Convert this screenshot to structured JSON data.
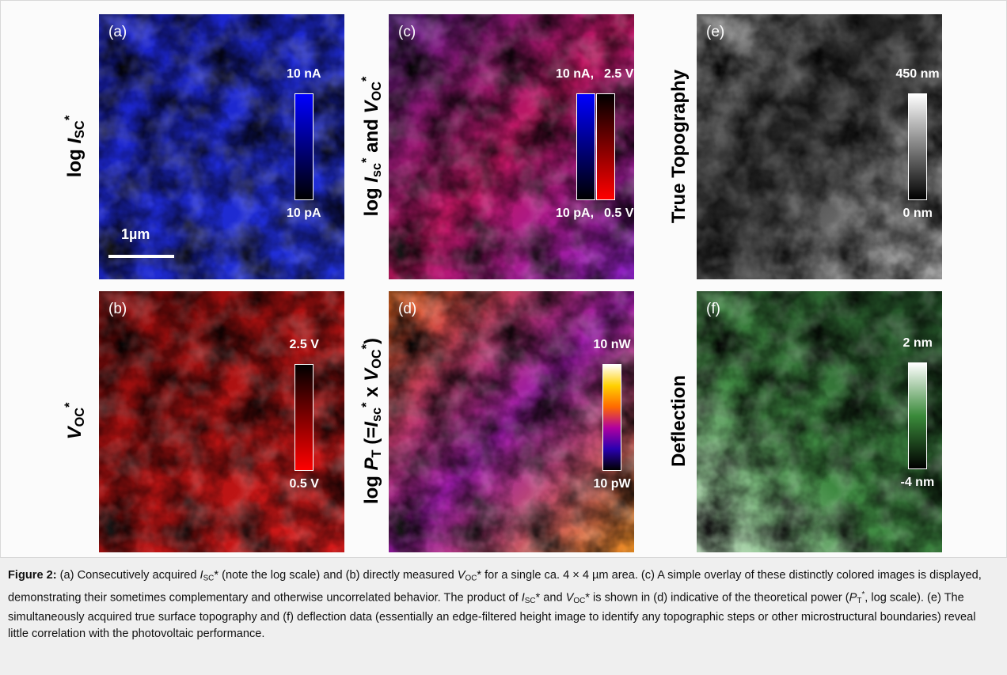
{
  "figure": {
    "panels": [
      {
        "letter": "(a)",
        "ylabel": [
          {
            "text": "log ",
            "style": ""
          },
          {
            "text": "I",
            "style": "i"
          },
          {
            "text": "SC",
            "style": "sub"
          },
          {
            "text": "*",
            "style": "sup"
          }
        ],
        "colorbars": [
          {
            "top": "10 nA",
            "bottom": "10 pA",
            "colors": [
              "#0000ff",
              "#000000"
            ]
          }
        ]
      },
      {
        "letter": "(b)",
        "ylabel": [
          {
            "text": "V",
            "style": "i"
          },
          {
            "text": "OC",
            "style": "sub"
          },
          {
            "text": "*",
            "style": "sup"
          }
        ],
        "colorbars": [
          {
            "top": "2.5 V",
            "bottom": "0.5 V",
            "colors": [
              "#000000",
              "#ff0000"
            ]
          }
        ]
      },
      {
        "letter": "(c)",
        "ylabel": [
          {
            "text": "log ",
            "style": ""
          },
          {
            "text": "I",
            "style": "i"
          },
          {
            "text": "sc",
            "style": "sub"
          },
          {
            "text": "*",
            "style": "sup"
          },
          {
            "text": " and ",
            "style": ""
          },
          {
            "text": "V",
            "style": "i"
          },
          {
            "text": "OC",
            "style": "sub"
          },
          {
            "text": "*",
            "style": "sup"
          }
        ],
        "colorbars": [
          {
            "top": "10 nA,",
            "bottom": "10 pA,",
            "colors": [
              "#0000ff",
              "#000000"
            ]
          },
          {
            "top": "2.5 V",
            "bottom": "0.5 V",
            "colors": [
              "#000000",
              "#ff0000"
            ]
          }
        ]
      },
      {
        "letter": "(d)",
        "ylabel": [
          {
            "text": "log ",
            "style": ""
          },
          {
            "text": "P",
            "style": "i"
          },
          {
            "text": "T",
            "style": "sub"
          },
          {
            "text": " (=",
            "style": ""
          },
          {
            "text": "I",
            "style": "i"
          },
          {
            "text": "sc",
            "style": "sub"
          },
          {
            "text": "*",
            "style": "sup"
          },
          {
            "text": " x ",
            "style": ""
          },
          {
            "text": "V",
            "style": "i"
          },
          {
            "text": "OC",
            "style": "sub"
          },
          {
            "text": "*",
            "style": "sup"
          },
          {
            "text": ")",
            "style": ""
          }
        ],
        "colorbars": [
          {
            "top": "10 nW",
            "bottom": "10 pW",
            "colors": [
              "#ffffff",
              "#ffd000",
              "#ff6a00",
              "#b000a0",
              "#2a00b0",
              "#000000"
            ]
          }
        ]
      },
      {
        "letter": "(e)",
        "ylabel": [
          {
            "text": "True Topography",
            "style": ""
          }
        ],
        "colorbars": [
          {
            "top": "450 nm",
            "bottom": "0 nm",
            "colors": [
              "#ffffff",
              "#000000"
            ]
          }
        ]
      },
      {
        "letter": "(f)",
        "ylabel": [
          {
            "text": "Deflection",
            "style": ""
          }
        ],
        "colorbars": [
          {
            "top": "2 nm",
            "bottom": "-4 nm",
            "colors": [
              "#ffffff",
              "#3a8a3a",
              "#000000"
            ]
          }
        ]
      }
    ],
    "scale_bar": "1µm",
    "caption": [
      {
        "text": "Figure 2:",
        "style": "b"
      },
      {
        "text": " (a) Consecutively acquired ",
        "style": ""
      },
      {
        "text": "I",
        "style": "i"
      },
      {
        "text": "SC",
        "style": "sub"
      },
      {
        "text": "* (note the log scale) and (b) directly measured ",
        "style": ""
      },
      {
        "text": "V",
        "style": "i"
      },
      {
        "text": "OC",
        "style": "sub"
      },
      {
        "text": "* for a single ca. 4 × 4 µm area. (c) A simple overlay of these distinctly colored images is displayed, demonstrating their sometimes complementary and otherwise uncorrelated behavior. The product of ",
        "style": ""
      },
      {
        "text": "I",
        "style": "i"
      },
      {
        "text": "SC",
        "style": "sub"
      },
      {
        "text": "* and ",
        "style": ""
      },
      {
        "text": "V",
        "style": "i"
      },
      {
        "text": "OC",
        "style": "sub"
      },
      {
        "text": "* is shown in (d) indicative of the theoretical power (",
        "style": ""
      },
      {
        "text": "P",
        "style": "i"
      },
      {
        "text": "T",
        "style": "sub"
      },
      {
        "text": "*",
        "style": "sup"
      },
      {
        "text": ", log scale). (e) The simultaneously acquired true surface topography and (f) deflection data (essentially an edge-filtered height image to identify any topographic steps or other microstructural boundaries) reveal little correlation with the photovoltaic performance.",
        "style": ""
      }
    ]
  }
}
